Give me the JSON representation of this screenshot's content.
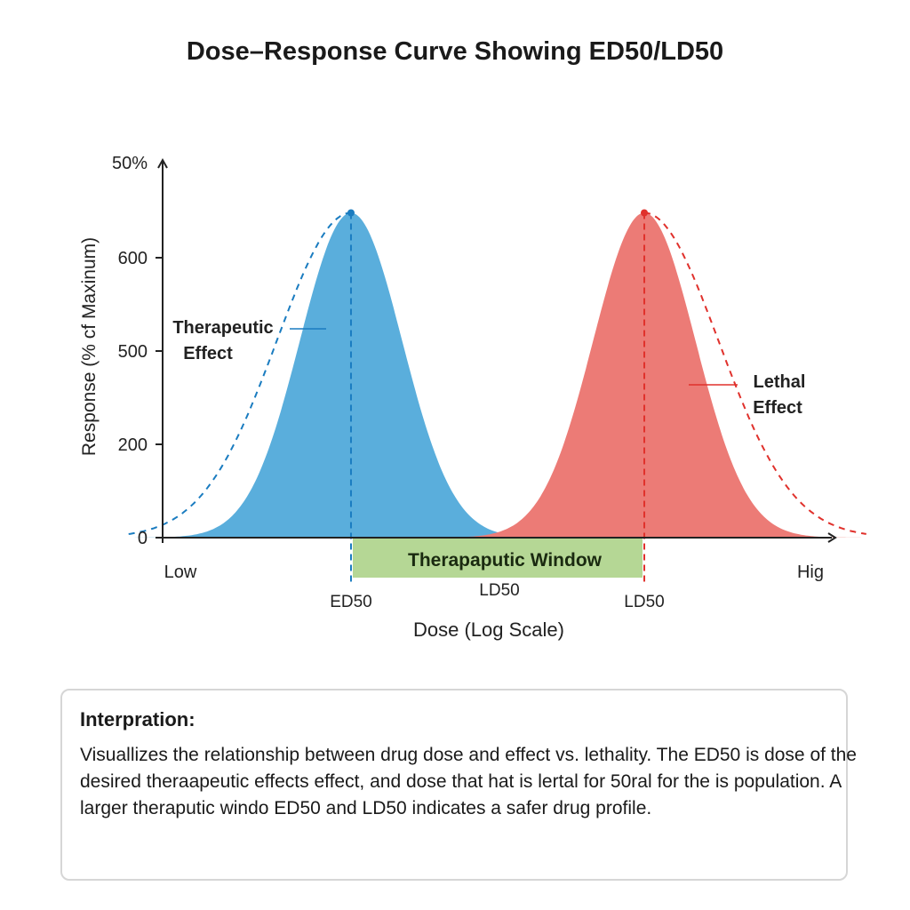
{
  "chart_data": {
    "type": "area",
    "title": "Dose–Response Curve Showing ED50/LD50",
    "xlabel": "Dose (Log Scale)",
    "ylabel": "Response (% cf Maxinum)",
    "x_tick_labels": {
      "low": "Low",
      "high": "Hig"
    },
    "y_tick_labels": [
      "0",
      "200",
      "500",
      "600",
      "50%"
    ],
    "xlim": [
      0,
      100
    ],
    "series": [
      {
        "name": "Therapeutic Effect",
        "label_line1": "Therapeutic",
        "label_line2": "Effect",
        "color": "#5aaedc",
        "line_color": "#1a7cc0",
        "center": 28,
        "sigma": 7.6,
        "peak": 0.86,
        "marker_label": "ED50"
      },
      {
        "name": "Lethal Effect",
        "label_line1": "Lethal",
        "label_line2": "Effect",
        "color": "#ec7b76",
        "line_color": "#e0312c",
        "center": 71.6,
        "sigma": 7.6,
        "peak": 0.86,
        "marker_label": "LD50"
      }
    ],
    "window": {
      "label": "Therapaputic Window",
      "from": 28,
      "to": 71.6,
      "color": "#b5d795",
      "mid_label": "LD50"
    }
  },
  "interpretation": {
    "heading": "Interpration:",
    "text": "Visuallizes the relationship between drug dose and effect vs. lethality. The ED50 is dose of the desired theraapeutic effects effect, and dose that hat is lertal for 50ral for the is population. A larger theraputic windo ED50 and LD50 indicates a safer drug profile."
  }
}
